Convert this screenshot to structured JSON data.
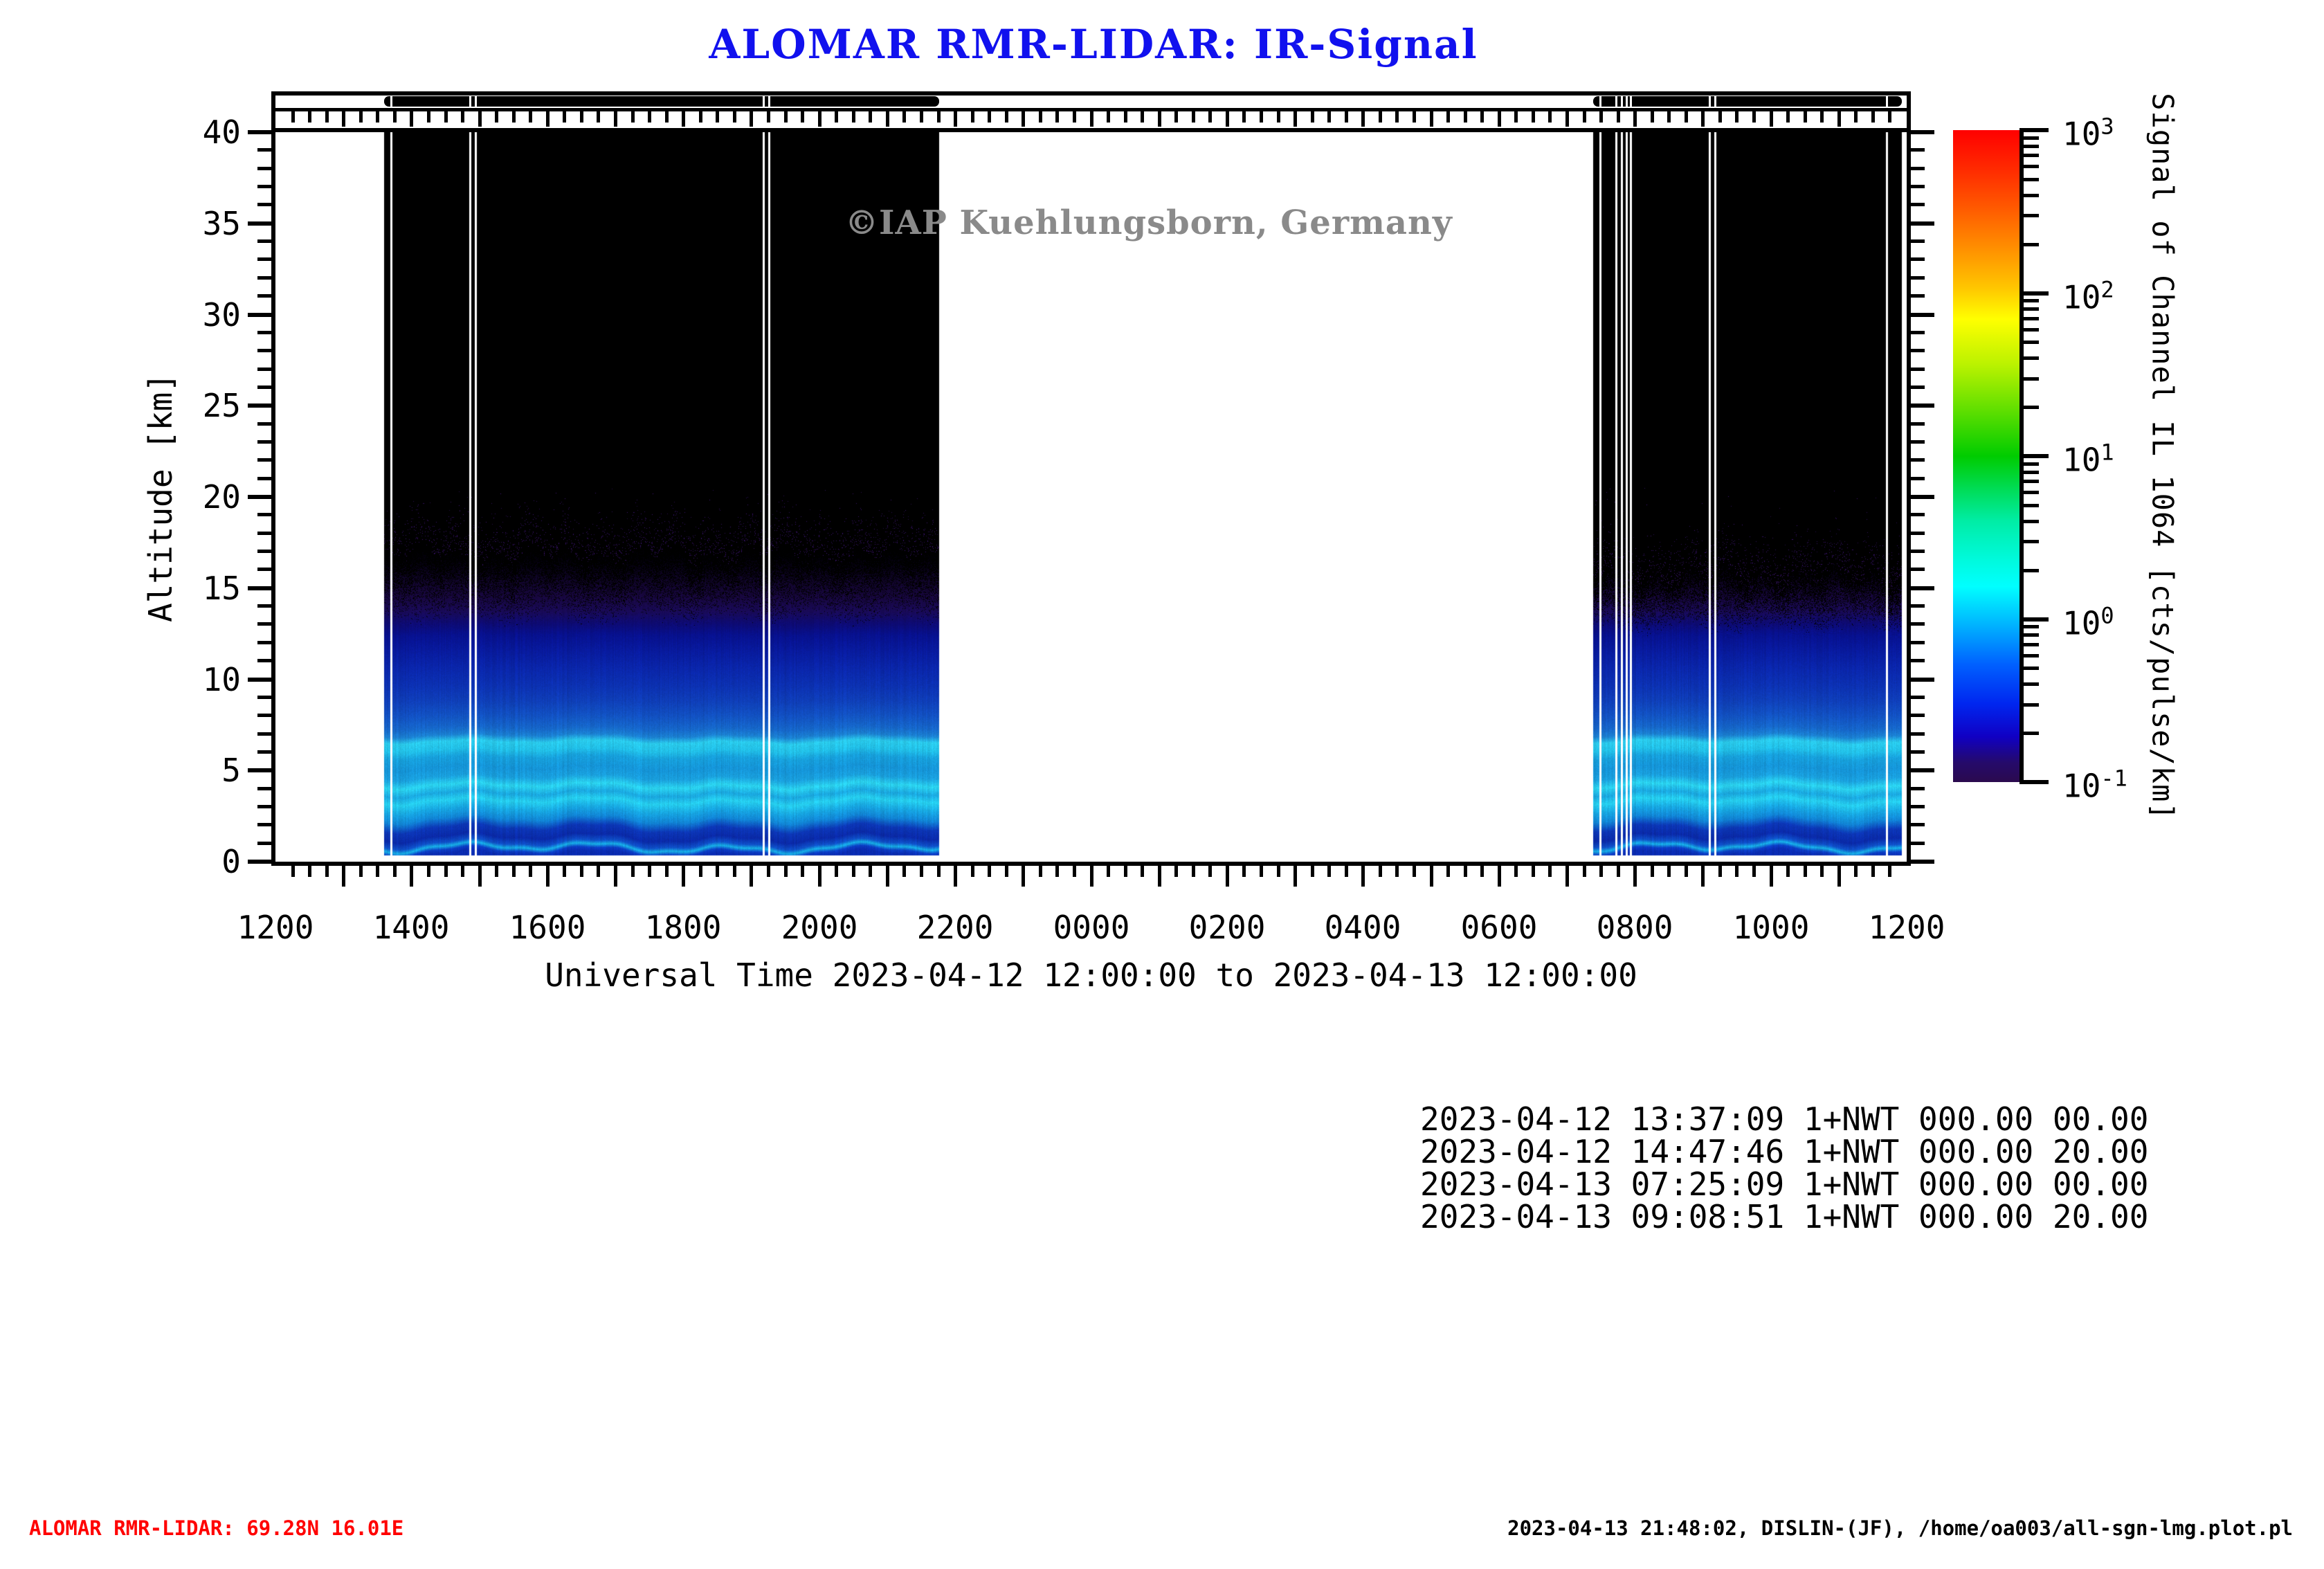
{
  "title": "ALOMAR RMR-LIDAR: IR-Signal",
  "watermark": "©IAP Kuehlungsborn, Germany",
  "colors": {
    "title_blue": "#1111ee",
    "watermark_gray": "#8a8a8a",
    "footer_red": "#ff0000",
    "axis_black": "#000000"
  },
  "x_axis": {
    "label": "Universal Time 2023-04-12 12:00:00 to 2023-04-13 12:00:00",
    "tick_labels": [
      "1200",
      "1400",
      "1600",
      "1800",
      "2000",
      "2200",
      "0000",
      "0200",
      "0400",
      "0600",
      "0800",
      "1000",
      "1200"
    ]
  },
  "y_axis": {
    "label": "Altitude [km]",
    "tick_labels": [
      "0",
      "5",
      "10",
      "15",
      "20",
      "25",
      "30",
      "35",
      "40"
    ]
  },
  "colorbar": {
    "title": "Signal of Channel IL 1064 [cts/pulse/km]",
    "tick_labels": [
      {
        "mantissa": "10",
        "exponent": "3"
      },
      {
        "mantissa": "10",
        "exponent": "2"
      },
      {
        "mantissa": "10",
        "exponent": "1"
      },
      {
        "mantissa": "10",
        "exponent": "0"
      },
      {
        "mantissa": "10",
        "exponent": "-1"
      }
    ]
  },
  "annotations": {
    "lines": [
      "2023-04-12 13:37:09 1+NWT 000.00 00.00",
      "2023-04-12 14:47:46 1+NWT 000.00 20.00",
      "2023-04-13 07:25:09 1+NWT 000.00 00.00",
      "2023-04-13 09:08:51 1+NWT 000.00 20.00"
    ]
  },
  "footer": {
    "left": "ALOMAR RMR-LIDAR: 69.28N 16.01E",
    "right": "2023-04-13 21:48:02, DISLIN-(JF), /home/oa003/all-sgn-lmg.plot.pl"
  },
  "chart_data": {
    "type": "heatmap",
    "title": "ALOMAR RMR-LIDAR: IR-Signal",
    "x_unit": "UT, hours after 2023-04-12 12:00:00",
    "x_range_hours": [
      0,
      24
    ],
    "x_tick_step_hours": 2,
    "x_minor_tick_hours": 0.25,
    "y_unit": "km",
    "y_range_km": [
      0,
      40
    ],
    "y_tick_step_km": 5,
    "y_minor_tick_km": 1,
    "z_label": "Signal of Channel IL 1064",
    "z_unit": "cts/pulse/km",
    "z_scale": "log10",
    "z_range": [
      0.1,
      1000
    ],
    "colormap_stops": [
      [
        0,
        "#ff0000"
      ],
      [
        6,
        "#ff2a00"
      ],
      [
        12,
        "#ff5a00"
      ],
      [
        18,
        "#ff8e00"
      ],
      [
        24,
        "#ffc400"
      ],
      [
        29,
        "#ffff00"
      ],
      [
        36,
        "#baf200"
      ],
      [
        43,
        "#5fdf00"
      ],
      [
        50,
        "#00cc00"
      ],
      [
        55,
        "#00dc55"
      ],
      [
        60,
        "#00eda6"
      ],
      [
        66,
        "#00fadd"
      ],
      [
        70,
        "#00ffff"
      ],
      [
        76,
        "#00b2ff"
      ],
      [
        82,
        "#0060ff"
      ],
      [
        88,
        "#0026ef"
      ],
      [
        93,
        "#1000c4"
      ],
      [
        97,
        "#250a6b"
      ],
      [
        100,
        "#2b0a4e"
      ]
    ],
    "measurement_blocks": [
      {
        "start_utc": "2023-04-12 13:37:09",
        "start_h": 1.6,
        "end_h": 9.77,
        "gap_lines_h": [
          1.7,
          2.86,
          2.94,
          7.18,
          7.26
        ],
        "noise_band_km": [
          13.0,
          16.9
        ]
      },
      {
        "start_utc": "2023-04-13 07:25:09",
        "start_h": 19.39,
        "end_h": 23.93,
        "gap_lines_h": [
          19.49,
          19.72,
          19.8,
          19.88,
          19.94,
          21.1,
          21.18,
          23.7
        ],
        "noise_band_km": [
          12.5,
          15.7
        ]
      }
    ],
    "altitude_color_profile": [
      [
        0.35,
        "#0a2cb4"
      ],
      [
        0.55,
        "#0c3ec8"
      ],
      [
        0.75,
        "#18b2e8"
      ],
      [
        0.95,
        "#0f52cc"
      ],
      [
        1.3,
        "#0a2aaa"
      ],
      [
        1.8,
        "#0c37b8"
      ],
      [
        2.3,
        "#1186d8"
      ],
      [
        2.8,
        "#17a8e4"
      ],
      [
        3.3,
        "#27d2f2"
      ],
      [
        3.7,
        "#1aa9e2"
      ],
      [
        4.15,
        "#2cd6f2"
      ],
      [
        4.6,
        "#1aa2e0"
      ],
      [
        5.1,
        "#1596da"
      ],
      [
        5.7,
        "#17a2de"
      ],
      [
        6.1,
        "#22c2ea"
      ],
      [
        6.55,
        "#2bcdee"
      ],
      [
        6.9,
        "#1b82d4"
      ],
      [
        7.3,
        "#1668cc"
      ],
      [
        8.0,
        "#1252c4"
      ],
      [
        8.8,
        "#0f3fba"
      ],
      [
        9.6,
        "#0c32b4"
      ],
      [
        10.6,
        "#0a26ac"
      ],
      [
        11.6,
        "#081a9e"
      ],
      [
        12.4,
        "#071190"
      ],
      [
        13.0,
        "#0d0b76"
      ],
      [
        13.7,
        "#190a58"
      ],
      [
        14.5,
        "#180740"
      ],
      [
        15.3,
        "#12052e"
      ],
      [
        16.1,
        "#09021a"
      ],
      [
        16.8,
        "#03010a"
      ],
      [
        17.4,
        "#000000"
      ]
    ]
  }
}
